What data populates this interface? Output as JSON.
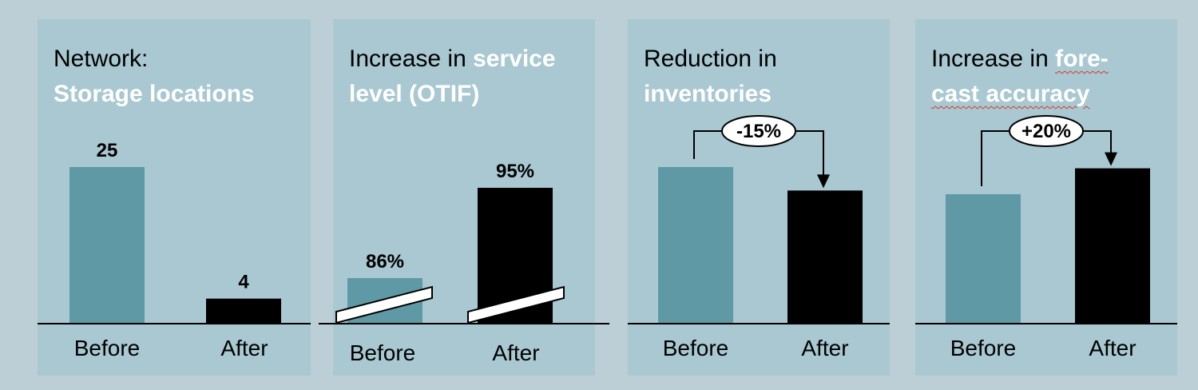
{
  "colors": {
    "before": "#5f99a5",
    "after": "#000000",
    "panel": "#a9c8d1",
    "background": "#bccfd6",
    "highlight": "#ffffff"
  },
  "chart_data": [
    {
      "type": "bar",
      "title_parts": [
        {
          "text": "Network:",
          "style": "normal"
        },
        {
          "text": "Storage locations",
          "style": "highlight"
        }
      ],
      "categories": [
        "Before",
        "After"
      ],
      "values": [
        25,
        4
      ],
      "value_labels": [
        "25",
        "4"
      ]
    },
    {
      "type": "bar",
      "title_parts": [
        {
          "text": "Increase in ",
          "style": "normal"
        },
        {
          "text": "service",
          "style": "highlight"
        },
        {
          "text": "level (OTIF)",
          "style": "highlight"
        }
      ],
      "categories": [
        "Before",
        "After"
      ],
      "values": [
        86,
        95
      ],
      "value_labels": [
        "86%",
        "95%"
      ],
      "axis_break": true
    },
    {
      "type": "bar",
      "title_parts": [
        {
          "text": "Reduction in",
          "style": "normal"
        },
        {
          "text": "inventories",
          "style": "highlight"
        }
      ],
      "categories": [
        "Before",
        "After"
      ],
      "values": [
        100,
        85
      ],
      "change_label": "-15%"
    },
    {
      "type": "bar",
      "title_parts": [
        {
          "text": "Increase in ",
          "style": "normal"
        },
        {
          "text": "fore-",
          "style": "highlight-wavy"
        },
        {
          "text": "cast accuracy",
          "style": "highlight-wavy"
        }
      ],
      "categories": [
        "Before",
        "After"
      ],
      "values": [
        100,
        120
      ],
      "change_label": "+20%"
    }
  ]
}
